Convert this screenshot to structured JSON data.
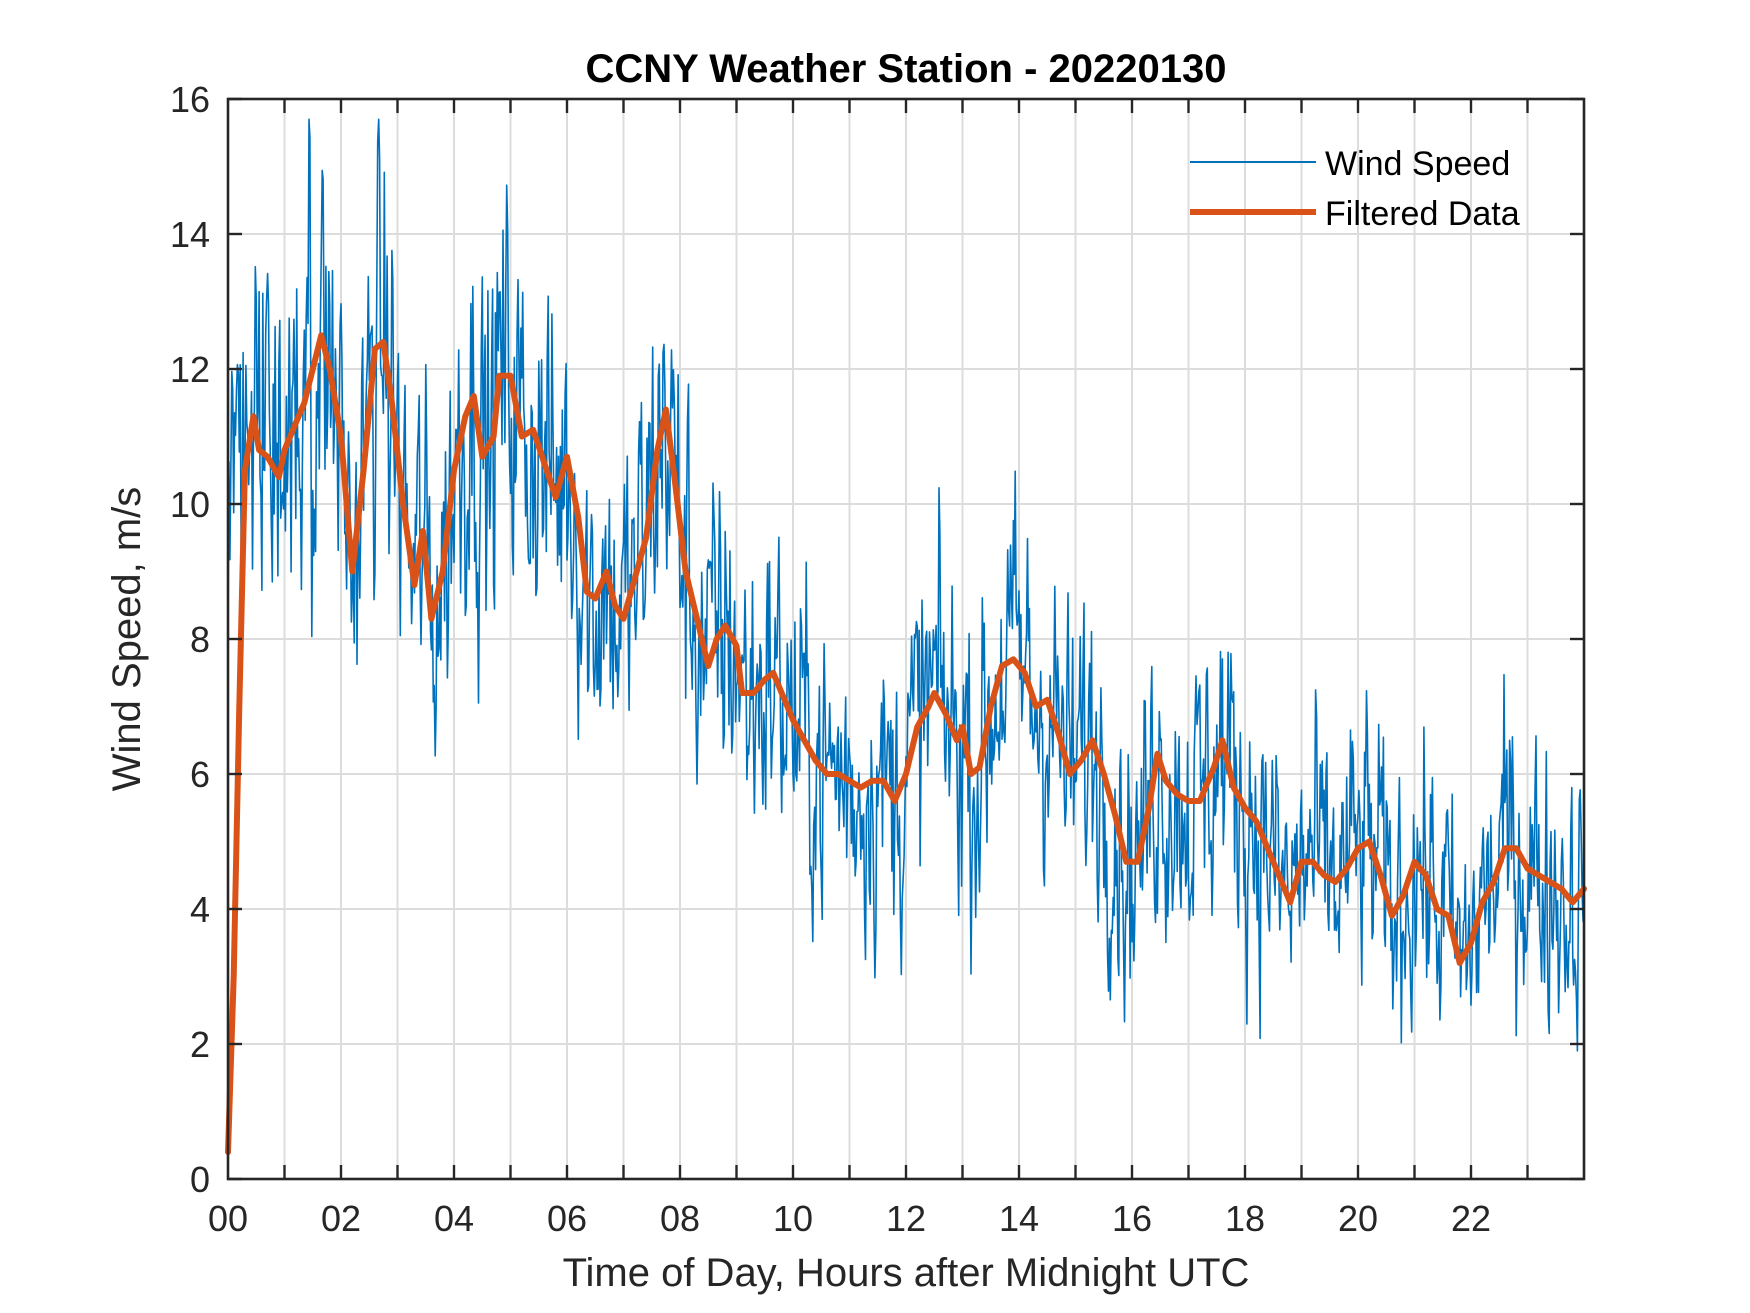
{
  "chart_data": {
    "type": "line",
    "title": "CCNY Weather Station - 20220130",
    "xlabel": "Time of Day, Hours after Midnight UTC",
    "ylabel": "Wind Speed, m/s",
    "xlim": [
      0,
      24
    ],
    "ylim": [
      0,
      16
    ],
    "grid": true,
    "legend_position": "top-right",
    "x_ticks": [
      0,
      2,
      4,
      6,
      8,
      10,
      12,
      14,
      16,
      18,
      20,
      22
    ],
    "x_tick_labels": [
      "00",
      "02",
      "04",
      "06",
      "08",
      "10",
      "12",
      "14",
      "16",
      "18",
      "20",
      "22"
    ],
    "x_minor_grid": [
      1,
      3,
      5,
      7,
      9,
      11,
      13,
      15,
      17,
      19,
      21,
      23
    ],
    "y_ticks": [
      0,
      2,
      4,
      6,
      8,
      10,
      12,
      14,
      16
    ],
    "y_tick_labels": [
      "0",
      "2",
      "4",
      "6",
      "8",
      "10",
      "12",
      "14",
      "16"
    ],
    "series": [
      {
        "name": "Wind Speed",
        "color": "#0072BD",
        "style": "thin line, high-frequency noisy measurements (~1-min sampling)",
        "approx_envelope": {
          "min": 1.9,
          "max": 15.7
        },
        "generated_from": "Filtered Data plus noise"
      },
      {
        "name": "Filtered Data",
        "color": "#D95319",
        "style": "thick line",
        "x": [
          0.0,
          0.1,
          0.2,
          0.3,
          0.45,
          0.55,
          0.7,
          0.9,
          1.0,
          1.2,
          1.35,
          1.5,
          1.65,
          1.8,
          2.0,
          2.2,
          2.4,
          2.6,
          2.75,
          2.9,
          3.1,
          3.3,
          3.45,
          3.6,
          3.8,
          4.0,
          4.2,
          4.35,
          4.5,
          4.7,
          4.8,
          5.0,
          5.2,
          5.4,
          5.6,
          5.8,
          6.0,
          6.2,
          6.35,
          6.5,
          6.7,
          6.85,
          7.0,
          7.2,
          7.4,
          7.6,
          7.75,
          7.9,
          8.1,
          8.3,
          8.5,
          8.65,
          8.8,
          9.0,
          9.1,
          9.3,
          9.5,
          9.65,
          9.8,
          10.0,
          10.2,
          10.4,
          10.6,
          10.8,
          11.0,
          11.2,
          11.4,
          11.6,
          11.8,
          12.0,
          12.2,
          12.4,
          12.5,
          12.7,
          12.9,
          13.0,
          13.15,
          13.3,
          13.5,
          13.7,
          13.9,
          14.1,
          14.3,
          14.5,
          14.7,
          14.9,
          15.1,
          15.3,
          15.5,
          15.7,
          15.9,
          16.1,
          16.3,
          16.45,
          16.6,
          16.8,
          17.0,
          17.2,
          17.45,
          17.6,
          17.8,
          18.0,
          18.2,
          18.4,
          18.6,
          18.8,
          19.0,
          19.2,
          19.4,
          19.6,
          19.8,
          20.0,
          20.2,
          20.4,
          20.6,
          20.8,
          21.0,
          21.2,
          21.4,
          21.6,
          21.8,
          22.0,
          22.2,
          22.4,
          22.6,
          22.8,
          23.0,
          23.2,
          23.4,
          23.6,
          23.8,
          24.0
        ],
        "values": [
          0.4,
          3.0,
          7.0,
          10.5,
          11.3,
          10.8,
          10.7,
          10.4,
          10.8,
          11.2,
          11.5,
          12.0,
          12.5,
          12.0,
          11.0,
          9.0,
          10.5,
          12.3,
          12.4,
          11.5,
          10.0,
          8.8,
          9.6,
          8.3,
          9.0,
          10.5,
          11.3,
          11.6,
          10.7,
          11.0,
          11.9,
          11.9,
          11.0,
          11.1,
          10.6,
          10.1,
          10.7,
          9.8,
          8.7,
          8.6,
          9.0,
          8.5,
          8.3,
          8.9,
          9.5,
          10.8,
          11.4,
          10.4,
          9.0,
          8.3,
          7.6,
          8.0,
          8.2,
          7.9,
          7.2,
          7.2,
          7.4,
          7.5,
          7.2,
          6.8,
          6.5,
          6.2,
          6.0,
          6.0,
          5.9,
          5.8,
          5.9,
          5.9,
          5.6,
          6.0,
          6.7,
          7.0,
          7.2,
          6.9,
          6.5,
          6.7,
          6.0,
          6.1,
          7.0,
          7.6,
          7.7,
          7.5,
          7.0,
          7.1,
          6.6,
          6.0,
          6.2,
          6.5,
          6.0,
          5.4,
          4.7,
          4.7,
          5.5,
          6.3,
          5.9,
          5.7,
          5.6,
          5.6,
          6.1,
          6.5,
          5.8,
          5.5,
          5.3,
          4.9,
          4.5,
          4.1,
          4.7,
          4.7,
          4.5,
          4.4,
          4.6,
          4.9,
          5.0,
          4.5,
          3.9,
          4.2,
          4.7,
          4.5,
          4.0,
          3.9,
          3.2,
          3.5,
          4.1,
          4.4,
          4.9,
          4.9,
          4.6,
          4.5,
          4.4,
          4.3,
          4.1,
          4.3
        ]
      }
    ]
  }
}
